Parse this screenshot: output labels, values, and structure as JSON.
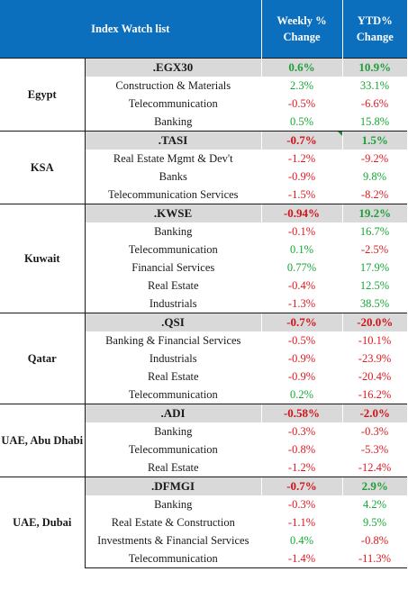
{
  "header": {
    "title": "Index Watch list",
    "weekly": "Weekly % Change",
    "ytd": "YTD% Change"
  },
  "groups": [
    {
      "country": "Egypt",
      "index": {
        "name": ".EGX30",
        "weekly": "0.6%",
        "ytd": "10.9%"
      },
      "rows": [
        {
          "name": "Construction & Materials",
          "weekly": "2.3%",
          "ytd": "33.1%"
        },
        {
          "name": "Telecommunication",
          "weekly": "-0.5%",
          "ytd": "-6.6%"
        },
        {
          "name": "Banking",
          "weekly": "0.5%",
          "ytd": "15.8%"
        }
      ]
    },
    {
      "country": "KSA",
      "index": {
        "name": ".TASI",
        "weekly": "-0.7%",
        "ytd": "1.5%"
      },
      "rows": [
        {
          "name": "Real Estate Mgmt & Dev't",
          "weekly": "-1.2%",
          "ytd": "-9.2%"
        },
        {
          "name": "Banks",
          "weekly": "-0.9%",
          "ytd": "9.8%"
        },
        {
          "name": "Telecommunication Services",
          "weekly": "-1.5%",
          "ytd": "-8.2%"
        }
      ]
    },
    {
      "country": "Kuwait",
      "index": {
        "name": ".KWSE",
        "weekly": "-0.94%",
        "ytd": "19.2%"
      },
      "rows": [
        {
          "name": "Banking",
          "weekly": "-0.1%",
          "ytd": "16.7%"
        },
        {
          "name": "Telecommunication",
          "weekly": "0.1%",
          "ytd": "-2.5%"
        },
        {
          "name": "Financial Services",
          "weekly": "0.77%",
          "ytd": "17.9%"
        },
        {
          "name": "Real Estate",
          "weekly": "-0.4%",
          "ytd": "12.5%"
        },
        {
          "name": "Industrials",
          "weekly": "-1.3%",
          "ytd": "38.5%"
        }
      ]
    },
    {
      "country": "Qatar",
      "index": {
        "name": ".QSI",
        "weekly": "-0.7%",
        "ytd": "-20.0%"
      },
      "rows": [
        {
          "name": "Banking & Financial Services",
          "weekly": "-0.5%",
          "ytd": "-10.1%"
        },
        {
          "name": "Industrials",
          "weekly": "-0.9%",
          "ytd": "-23.9%"
        },
        {
          "name": "Real Estate",
          "weekly": "-0.9%",
          "ytd": "-20.4%"
        },
        {
          "name": "Telecommunication",
          "weekly": "0.2%",
          "ytd": "-16.2%"
        }
      ]
    },
    {
      "country": "UAE, Abu Dhabi",
      "index": {
        "name": ".ADI",
        "weekly": "-0.58%",
        "ytd": "-2.0%"
      },
      "rows": [
        {
          "name": "Banking",
          "weekly": "-0.3%",
          "ytd": "-0.3%"
        },
        {
          "name": "Telecommunication",
          "weekly": "-0.8%",
          "ytd": "-5.3%"
        },
        {
          "name": "Real Estate",
          "weekly": "-1.2%",
          "ytd": "-12.4%"
        }
      ]
    },
    {
      "country": "UAE, Dubai",
      "index": {
        "name": ".DFMGI",
        "weekly": "-0.7%",
        "ytd": "2.9%"
      },
      "rows": [
        {
          "name": "Banking",
          "weekly": "-0.3%",
          "ytd": "4.2%"
        },
        {
          "name": "Real Estate & Construction",
          "weekly": "-1.1%",
          "ytd": "9.5%"
        },
        {
          "name": "Investments & Financial Services",
          "weekly": "0.4%",
          "ytd": "-0.8%"
        },
        {
          "name": "Telecommunication",
          "weekly": "-1.4%",
          "ytd": "-11.3%"
        }
      ]
    }
  ],
  "colors": {
    "header_bg": "#0b6fbd",
    "index_row_bg": "#d9d9d9",
    "positive": "#16a834",
    "negative": "#e0191e"
  }
}
